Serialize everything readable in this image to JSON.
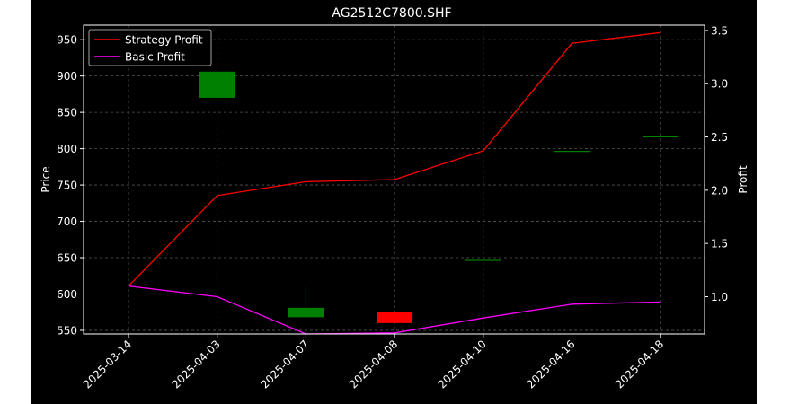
{
  "chart_data": {
    "type": "candlestick+line",
    "title": "AG2512C7800.SHF",
    "categories": [
      "2025-03-14",
      "2025-04-03",
      "2025-04-07",
      "2025-04-08",
      "2025-04-10",
      "2025-04-16",
      "2025-04-18"
    ],
    "ylabel": "Price",
    "y2label": "Profit",
    "ylim": [
      545,
      970
    ],
    "y2lim": [
      0.65,
      3.55
    ],
    "yticks": [
      550,
      600,
      650,
      700,
      750,
      800,
      850,
      900,
      950
    ],
    "y2ticks": [
      1.0,
      1.5,
      2.0,
      2.5,
      3.0,
      3.5
    ],
    "grid": true,
    "legend_position": "top-left",
    "candles": [
      {
        "date": "2025-04-03",
        "open": 870,
        "close": 906,
        "high": 906,
        "low": 870
      },
      {
        "date": "2025-04-07",
        "open": 568,
        "close": 581,
        "high": 611,
        "low": 568
      },
      {
        "date": "2025-04-08",
        "open": 575,
        "close": 560,
        "high": 575,
        "low": 560
      },
      {
        "date": "2025-04-10",
        "open": 647,
        "close": 647,
        "high": 647,
        "low": 647
      },
      {
        "date": "2025-04-16",
        "open": 797,
        "close": 797,
        "high": 797,
        "low": 797
      },
      {
        "date": "2025-04-18",
        "open": 817,
        "close": 817,
        "high": 817,
        "low": 817
      }
    ],
    "series": [
      {
        "name": "Strategy Profit",
        "color": "#ff0000",
        "axis": "right",
        "values": [
          1.1,
          1.95,
          2.08,
          2.1,
          2.37,
          3.38,
          3.48
        ]
      },
      {
        "name": "Basic Profit",
        "color": "#ff00ff",
        "axis": "right",
        "values": [
          1.1,
          1.0,
          0.65,
          0.66,
          0.8,
          0.93,
          0.95
        ]
      }
    ],
    "colors": {
      "up": "#008000",
      "down": "#ff0000",
      "background": "#000000",
      "grid": "#555555"
    }
  }
}
